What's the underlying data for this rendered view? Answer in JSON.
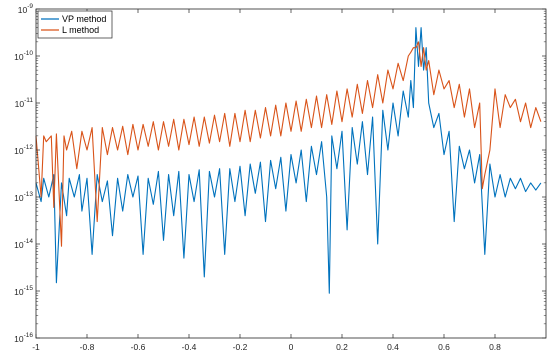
{
  "chart_data": {
    "type": "line",
    "title": "",
    "xlabel": "",
    "ylabel": "",
    "xlim": [
      -1,
      1
    ],
    "ylim": [
      1e-16,
      1e-09
    ],
    "y_scale": "log",
    "grid": false,
    "legend_position": "top-left",
    "x_ticks": [
      -1,
      -0.8,
      -0.6,
      -0.4,
      -0.2,
      0,
      0.2,
      0.4,
      0.6,
      0.8
    ],
    "x_tick_labels": [
      "-1",
      "-0.8",
      "-0.6",
      "-0.4",
      "-0.2",
      "0",
      "0.2",
      "0.4",
      "0.6",
      "0.8"
    ],
    "y_ticks": [
      1e-16,
      1e-15,
      1e-14,
      1e-13,
      1e-12,
      1e-11,
      1e-10,
      1e-09
    ],
    "y_tick_labels": [
      {
        "base": "10",
        "exp": "-16"
      },
      {
        "base": "10",
        "exp": "-15"
      },
      {
        "base": "10",
        "exp": "-14"
      },
      {
        "base": "10",
        "exp": "-13"
      },
      {
        "base": "10",
        "exp": "-12"
      },
      {
        "base": "10",
        "exp": "-11"
      },
      {
        "base": "10",
        "exp": "-10"
      },
      {
        "base": "10",
        "exp": "-9"
      }
    ],
    "series": [
      {
        "name": "VP method",
        "color": "#0072bd",
        "x": [
          -1.0,
          -0.98,
          -0.97,
          -0.95,
          -0.93,
          -0.92,
          -0.9,
          -0.88,
          -0.87,
          -0.85,
          -0.83,
          -0.82,
          -0.8,
          -0.78,
          -0.76,
          -0.74,
          -0.72,
          -0.7,
          -0.68,
          -0.66,
          -0.64,
          -0.62,
          -0.6,
          -0.58,
          -0.56,
          -0.54,
          -0.52,
          -0.5,
          -0.48,
          -0.46,
          -0.44,
          -0.42,
          -0.4,
          -0.38,
          -0.36,
          -0.34,
          -0.32,
          -0.3,
          -0.28,
          -0.26,
          -0.24,
          -0.22,
          -0.2,
          -0.18,
          -0.16,
          -0.14,
          -0.12,
          -0.1,
          -0.08,
          -0.06,
          -0.04,
          -0.02,
          0.0,
          0.02,
          0.04,
          0.06,
          0.08,
          0.1,
          0.12,
          0.14,
          0.15,
          0.16,
          0.18,
          0.2,
          0.22,
          0.24,
          0.26,
          0.28,
          0.3,
          0.32,
          0.34,
          0.36,
          0.38,
          0.4,
          0.42,
          0.44,
          0.46,
          0.47,
          0.48,
          0.49,
          0.5,
          0.51,
          0.52,
          0.53,
          0.54,
          0.56,
          0.58,
          0.6,
          0.62,
          0.64,
          0.66,
          0.68,
          0.7,
          0.72,
          0.74,
          0.76,
          0.78,
          0.8,
          0.82,
          0.84,
          0.86,
          0.88,
          0.9,
          0.92,
          0.94,
          0.96,
          0.98
        ],
        "y": [
          2e-13,
          8e-14,
          2.5e-13,
          1e-13,
          3e-13,
          1.5e-15,
          2e-13,
          4e-14,
          2.5e-13,
          1e-13,
          3e-13,
          5e-14,
          2.5e-13,
          6e-15,
          3e-13,
          8e-14,
          2.2e-13,
          1.5e-14,
          2.5e-13,
          5e-14,
          3e-13,
          1e-13,
          2.8e-13,
          6e-15,
          2.5e-13,
          7e-14,
          3.5e-13,
          1.2e-14,
          3e-13,
          4e-14,
          3.5e-13,
          5e-15,
          3e-13,
          8e-14,
          3.8e-13,
          2e-15,
          3.5e-13,
          1e-13,
          4e-13,
          6e-15,
          4e-13,
          8e-14,
          4.5e-13,
          4e-14,
          5e-13,
          1.2e-13,
          5.5e-13,
          3e-14,
          6e-13,
          1.5e-13,
          7e-13,
          5e-14,
          8e-13,
          2e-13,
          1e-12,
          8e-14,
          1.2e-12,
          3e-13,
          1.5e-12,
          1e-13,
          9e-16,
          2e-12,
          4e-13,
          2.5e-12,
          2e-14,
          3e-12,
          5e-13,
          4e-12,
          3e-13,
          5e-12,
          1e-14,
          7e-12,
          1e-12,
          1e-11,
          2e-12,
          1.8e-11,
          5e-12,
          3e-11,
          8e-12,
          4e-10,
          6e-11,
          4e-10,
          5e-11,
          1.5e-10,
          1e-11,
          3e-12,
          6e-12,
          8e-13,
          2.5e-12,
          3e-14,
          1.2e-12,
          4e-13,
          1e-12,
          2e-13,
          8e-13,
          6e-15,
          5e-13,
          1e-13,
          3e-13,
          1e-13,
          2.5e-13,
          1.5e-13,
          2.5e-13,
          1.3e-13,
          2e-13,
          1.4e-13,
          2e-13
        ]
      },
      {
        "name": "L method",
        "color": "#d95319",
        "x": [
          -1.0,
          -0.98,
          -0.97,
          -0.96,
          -0.94,
          -0.93,
          -0.92,
          -0.9,
          -0.89,
          -0.88,
          -0.86,
          -0.84,
          -0.82,
          -0.8,
          -0.78,
          -0.76,
          -0.74,
          -0.72,
          -0.7,
          -0.68,
          -0.66,
          -0.64,
          -0.62,
          -0.6,
          -0.58,
          -0.56,
          -0.54,
          -0.52,
          -0.5,
          -0.48,
          -0.46,
          -0.44,
          -0.42,
          -0.4,
          -0.38,
          -0.36,
          -0.34,
          -0.32,
          -0.3,
          -0.28,
          -0.26,
          -0.24,
          -0.22,
          -0.2,
          -0.18,
          -0.16,
          -0.14,
          -0.12,
          -0.1,
          -0.08,
          -0.06,
          -0.04,
          -0.02,
          0.0,
          0.02,
          0.04,
          0.06,
          0.08,
          0.1,
          0.12,
          0.14,
          0.16,
          0.18,
          0.2,
          0.22,
          0.24,
          0.26,
          0.28,
          0.3,
          0.32,
          0.34,
          0.36,
          0.38,
          0.4,
          0.42,
          0.44,
          0.46,
          0.47,
          0.48,
          0.49,
          0.5,
          0.51,
          0.52,
          0.53,
          0.54,
          0.56,
          0.58,
          0.6,
          0.62,
          0.64,
          0.66,
          0.68,
          0.7,
          0.72,
          0.74,
          0.75,
          0.76,
          0.78,
          0.8,
          0.82,
          0.84,
          0.86,
          0.88,
          0.9,
          0.92,
          0.94,
          0.96,
          0.98
        ],
        "y": [
          2e-12,
          1e-13,
          2e-12,
          1.5e-12,
          2e-12,
          6e-14,
          2.2e-12,
          9e-15,
          2e-12,
          1e-12,
          2.5e-12,
          4e-13,
          2.5e-12,
          1e-12,
          3e-12,
          3e-14,
          3e-12,
          8e-13,
          3e-12,
          1e-12,
          3.2e-12,
          8e-13,
          3.5e-12,
          1e-12,
          3.5e-12,
          1.2e-12,
          4e-12,
          1e-12,
          4e-12,
          1.2e-12,
          4.5e-12,
          1e-12,
          4.5e-12,
          1.3e-12,
          5e-12,
          1.2e-12,
          5e-12,
          1.4e-12,
          5.5e-12,
          1.5e-12,
          6e-12,
          1.2e-12,
          6e-12,
          1.5e-12,
          7e-12,
          1.5e-12,
          7e-12,
          1.8e-12,
          8e-12,
          2e-12,
          9e-12,
          2e-12,
          1e-11,
          2.5e-12,
          1.1e-11,
          2.5e-12,
          1.2e-11,
          3e-12,
          1.4e-11,
          3e-12,
          1.5e-11,
          3.5e-12,
          1.8e-11,
          4e-12,
          2e-11,
          5e-12,
          2.5e-11,
          6e-12,
          3e-11,
          8e-12,
          4e-11,
          1e-11,
          5e-11,
          2e-11,
          7e-11,
          3e-11,
          1e-10,
          1.2e-10,
          1.5e-10,
          1.5e-10,
          2e-10,
          6e-11,
          1.5e-10,
          5e-11,
          8e-11,
          1.5e-11,
          5e-11,
          2e-11,
          3e-11,
          8e-12,
          2.5e-11,
          5e-12,
          2e-11,
          3e-12,
          1e-11,
          1.5e-13,
          3e-13,
          1e-12,
          2e-11,
          3e-12,
          1.5e-11,
          8e-12,
          1.2e-11,
          4e-12,
          1e-11,
          3e-12,
          8e-12,
          4e-12
        ]
      }
    ]
  }
}
